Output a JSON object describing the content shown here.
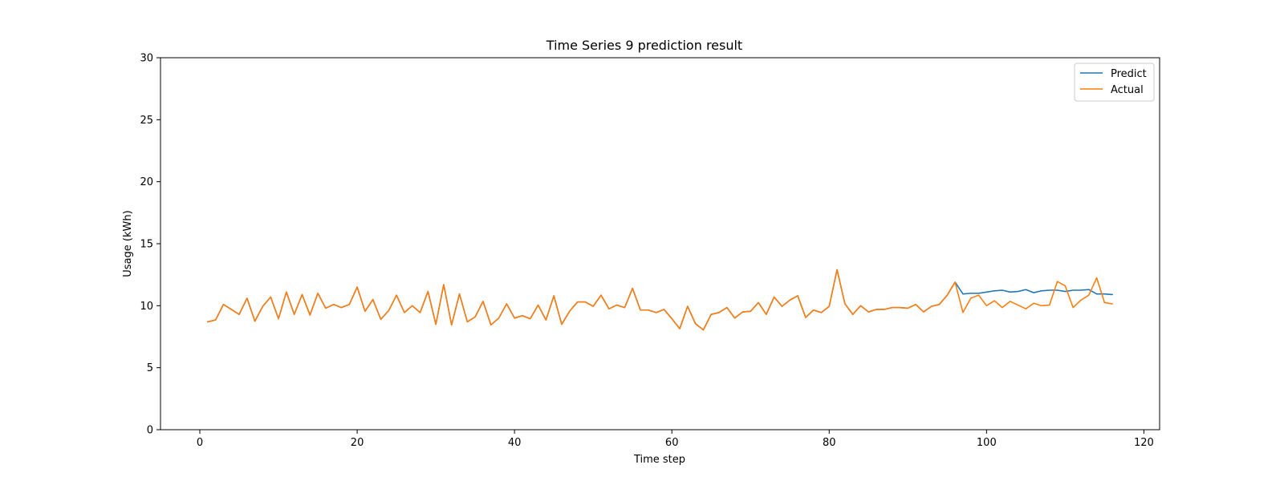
{
  "chart_data": {
    "type": "line",
    "title": "Time Series 9 prediction result",
    "xlabel": "Time step",
    "ylabel": "Usage (kWh)",
    "xlim": [
      -5,
      122
    ],
    "ylim": [
      0,
      30
    ],
    "xticks": [
      0,
      20,
      40,
      60,
      80,
      100,
      120
    ],
    "yticks": [
      0,
      5,
      10,
      15,
      20,
      25,
      30
    ],
    "legend_position": "top-right",
    "grid": false,
    "x": [
      1,
      2,
      3,
      4,
      5,
      6,
      7,
      8,
      9,
      10,
      11,
      12,
      13,
      14,
      15,
      16,
      17,
      18,
      19,
      20,
      21,
      22,
      23,
      24,
      25,
      26,
      27,
      28,
      29,
      30,
      31,
      32,
      33,
      34,
      35,
      36,
      37,
      38,
      39,
      40,
      41,
      42,
      43,
      44,
      45,
      46,
      47,
      48,
      49,
      50,
      51,
      52,
      53,
      54,
      55,
      56,
      57,
      58,
      59,
      60,
      61,
      62,
      63,
      64,
      65,
      66,
      67,
      68,
      69,
      70,
      71,
      72,
      73,
      74,
      75,
      76,
      77,
      78,
      79,
      80,
      81,
      82,
      83,
      84,
      85,
      86,
      87,
      88,
      89,
      90,
      91,
      92,
      93,
      94,
      95,
      96,
      97,
      98,
      99,
      100,
      101,
      102,
      103,
      104,
      105,
      106,
      107,
      108,
      109,
      110,
      111,
      112,
      113,
      114,
      115,
      116
    ],
    "series": [
      {
        "name": "Predict",
        "color": "#1f77b4",
        "values": [
          8.7,
          8.85,
          10.1,
          9.7,
          9.3,
          10.6,
          8.75,
          9.95,
          10.7,
          8.95,
          11.1,
          9.3,
          10.9,
          9.25,
          11.0,
          9.8,
          10.1,
          9.85,
          10.1,
          11.5,
          9.55,
          10.5,
          8.9,
          9.6,
          10.85,
          9.45,
          10.0,
          9.45,
          11.15,
          8.5,
          11.7,
          8.45,
          10.95,
          8.7,
          9.1,
          10.35,
          8.45,
          9.0,
          10.15,
          9.0,
          9.2,
          8.95,
          10.05,
          8.85,
          10.8,
          8.5,
          9.55,
          10.3,
          10.3,
          9.95,
          10.85,
          9.75,
          10.05,
          9.85,
          11.4,
          9.65,
          9.65,
          9.45,
          9.7,
          8.95,
          8.15,
          9.95,
          8.55,
          8.05,
          9.3,
          9.45,
          9.85,
          9.0,
          9.5,
          9.55,
          10.25,
          9.3,
          10.7,
          9.95,
          10.45,
          10.8,
          9.05,
          9.65,
          9.45,
          9.95,
          12.9,
          10.15,
          9.3,
          10.0,
          9.5,
          9.7,
          9.7,
          9.85,
          9.85,
          9.8,
          10.1,
          9.5,
          9.95,
          10.1,
          10.85,
          11.9,
          10.95,
          11.0,
          11.0,
          11.1,
          11.2,
          11.25,
          11.1,
          11.15,
          11.3,
          11.05,
          11.2,
          11.25,
          11.25,
          11.15,
          11.25,
          11.25,
          11.3,
          10.95,
          10.95,
          10.9
        ]
      },
      {
        "name": "Actual",
        "color": "#ff7f0e",
        "values": [
          8.7,
          8.85,
          10.1,
          9.7,
          9.3,
          10.6,
          8.75,
          9.95,
          10.7,
          8.95,
          11.1,
          9.3,
          10.9,
          9.25,
          11.0,
          9.8,
          10.1,
          9.85,
          10.1,
          11.5,
          9.55,
          10.5,
          8.9,
          9.6,
          10.85,
          9.45,
          10.0,
          9.45,
          11.15,
          8.5,
          11.7,
          8.45,
          10.95,
          8.7,
          9.1,
          10.35,
          8.45,
          9.0,
          10.15,
          9.0,
          9.2,
          8.95,
          10.05,
          8.85,
          10.8,
          8.5,
          9.55,
          10.3,
          10.3,
          9.95,
          10.85,
          9.75,
          10.05,
          9.85,
          11.4,
          9.65,
          9.65,
          9.45,
          9.7,
          8.95,
          8.15,
          9.95,
          8.55,
          8.05,
          9.3,
          9.45,
          9.85,
          9.0,
          9.5,
          9.55,
          10.25,
          9.3,
          10.7,
          9.95,
          10.45,
          10.8,
          9.05,
          9.65,
          9.45,
          9.95,
          12.9,
          10.15,
          9.3,
          10.0,
          9.5,
          9.7,
          9.7,
          9.85,
          9.85,
          9.8,
          10.1,
          9.5,
          9.95,
          10.1,
          10.85,
          11.9,
          9.45,
          10.6,
          10.85,
          10.0,
          10.4,
          9.85,
          10.35,
          10.05,
          9.75,
          10.2,
          10.0,
          10.05,
          11.95,
          11.6,
          9.85,
          10.45,
          10.85,
          12.25,
          10.25,
          10.15
        ]
      }
    ]
  }
}
